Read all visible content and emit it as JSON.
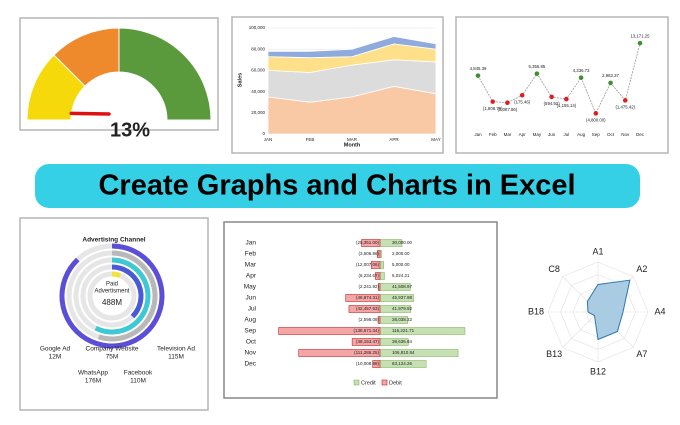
{
  "banner": "Create Graphs and Charts in Excel",
  "chart_data": [
    {
      "type": "gauge",
      "values": [
        13
      ],
      "value_labels": [
        "13%"
      ],
      "ylim": [
        0,
        100
      ],
      "bands": [
        {
          "to": 25,
          "color": "#f5d90a"
        },
        {
          "to": 50,
          "color": "#ef8a2c"
        },
        {
          "to": 100,
          "color": "#5a9a3c"
        }
      ],
      "needle_color": "#e01010"
    },
    {
      "type": "stacked-area",
      "y_label": "Sales",
      "x_label": "Month",
      "categories": [
        "JAN",
        "FEB",
        "MAR",
        "APR",
        "MAY"
      ],
      "ylim": [
        0,
        100000
      ],
      "yticks": [
        {
          "value": 0,
          "label": "0"
        },
        {
          "value": 20000,
          "label": "20,000"
        },
        {
          "value": 40000,
          "label": "40,000"
        },
        {
          "value": 60000,
          "label": "60,000"
        },
        {
          "value": 80000,
          "label": "80,000"
        },
        {
          "value": 100000,
          "label": "100,000"
        }
      ],
      "grid": true,
      "series": [
        {
          "color": "#f9c9a6",
          "values": [
            35000,
            30000,
            35000,
            45000,
            38000
          ]
        },
        {
          "color": "#dcdcdc",
          "values": [
            25000,
            28000,
            30000,
            25000,
            30000
          ]
        },
        {
          "color": "#ffe08a",
          "values": [
            13000,
            14000,
            8000,
            15000,
            12000
          ]
        },
        {
          "color": "#8faadc",
          "values": [
            5000,
            6000,
            7000,
            7000,
            5000
          ]
        }
      ]
    },
    {
      "type": "labeled-line",
      "categories": [
        "Jan",
        "Feb",
        "Mar",
        "Apr",
        "May",
        "Jun",
        "Jul",
        "Aug",
        "Sep",
        "Oct",
        "Nov",
        "Dec"
      ],
      "values": [
        4845.39,
        -1808.78,
        -2087.86,
        -175.46,
        5356.85,
        -594.92,
        -1155.14,
        4336.73,
        -4800.0,
        2983.37,
        -1475.42,
        13171.25
      ],
      "value_labels": [
        "4,845.39",
        "(1,808.78)",
        "(2,087.86)",
        "(175.46)",
        "5,356.85",
        "(594.92)",
        "(1,155.14)",
        "4,336.73",
        "(4,800.00)",
        "2,983.37",
        "(1,475.42)",
        "13,171.25"
      ],
      "ylim": [
        -6000,
        15000
      ],
      "line_color": "#9a9a9a",
      "positive_color": "#3f8f2f",
      "negative_color": "#e02020"
    },
    {
      "type": "rings",
      "title": "Advertising Channel",
      "center_label": [
        "Paid",
        "Advertisment"
      ],
      "total": 488,
      "total_label": "488M",
      "categories": [
        "Google Ad",
        "Company Website",
        "Television Ad",
        "WhatsApp",
        "Facebook"
      ],
      "values": [
        12,
        75,
        115,
        176,
        110
      ],
      "value_labels": [
        "12M",
        "75M",
        "115M",
        "176M",
        "110M"
      ],
      "colors": [
        "#f3e43a",
        "#4a5ad6",
        "#3cc9d4",
        "#5b4fd8",
        "#b8b8b8"
      ],
      "rlim": [
        0,
        200
      ],
      "track_color": "#e6e6e6"
    },
    {
      "type": "diverging-bar",
      "categories": [
        "Jan",
        "Feb",
        "Mar",
        "Apr",
        "May",
        "Jun",
        "Jul",
        "Aug",
        "Sep",
        "Oct",
        "Nov",
        "Dec"
      ],
      "xlim": [
        -145000,
        145000
      ],
      "series": [
        {
          "name": "Credit",
          "color": "#c6e0b4",
          "stroke": "#70ad47",
          "values": [
            30000.0,
            2000.0,
            5000.0,
            6024.21,
            41508.97,
            45937.98,
            41979.92,
            38038.32,
            116221.71,
            38636.84,
            106810.84,
            63124.26
          ],
          "value_labels": [
            "30,000.00",
            "2,000.00",
            "5,000.00",
            "6,024.21",
            "41,508.97",
            "45,937.98",
            "41,979.92",
            "38,038.32",
            "116,221.71",
            "38,636.84",
            "106,810.84",
            "63,124.26"
          ]
        },
        {
          "name": "Debit",
          "color": "#f4a6a6",
          "stroke": "#c00000",
          "values": [
            -25351.0,
            -3606.86,
            -12007.06,
            -6234.67,
            -2241.92,
            -46874.31,
            -42457.53,
            -2598.08,
            -138671.34,
            -38153.47,
            -111286.25,
            -10008.98
          ],
          "value_labels": [
            "(25,351.00)",
            "(3,606.86)",
            "(12,007.06)",
            "(6,234.67)",
            "(2,241.92)",
            "(46,874.31)",
            "(42,457.53)",
            "(2,598.08)",
            "(138,671.34)",
            "(38,153.47)",
            "(111,286.25)",
            "(10,008.98)"
          ]
        }
      ]
    },
    {
      "type": "radar",
      "categories": [
        "A1",
        "A2",
        "A4",
        "A7",
        "B12",
        "B13",
        "B18",
        "C8"
      ],
      "values": [
        0.55,
        0.9,
        0.5,
        0.55,
        0.55,
        0.1,
        0.2,
        0.3
      ],
      "ylim": [
        0,
        1
      ],
      "color": "#a9cce3",
      "stroke": "#2e75b6"
    }
  ]
}
